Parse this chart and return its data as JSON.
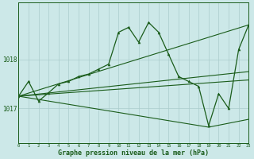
{
  "title": "Graphe pression niveau de la mer (hPa)",
  "background_color": "#cce8e8",
  "line_color": "#1a5c1a",
  "grid_color": "#aacccc",
  "yticks": [
    1017,
    1018
  ],
  "xtick_labels": [
    "0",
    "1",
    "2",
    "3",
    "4",
    "5",
    "6",
    "7",
    "8",
    "9",
    "10",
    "11",
    "12",
    "13",
    "14",
    "15",
    "16",
    "17",
    "18",
    "19",
    "20",
    "21",
    "22",
    "23"
  ],
  "xticks": [
    0,
    1,
    2,
    3,
    4,
    5,
    6,
    7,
    8,
    9,
    10,
    11,
    12,
    13,
    14,
    15,
    16,
    17,
    18,
    19,
    20,
    21,
    22,
    23
  ],
  "ylim": [
    1016.3,
    1019.15
  ],
  "xlim": [
    0,
    23
  ],
  "series_main": {
    "x": [
      0,
      1,
      2,
      3,
      4,
      5,
      6,
      7,
      8,
      9,
      10,
      11,
      12,
      13,
      14,
      15,
      16,
      17,
      18,
      19,
      20,
      21,
      22,
      23
    ],
    "y": [
      1017.25,
      1017.55,
      1017.15,
      1017.32,
      1017.5,
      1017.55,
      1017.65,
      1017.7,
      1017.8,
      1017.9,
      1018.55,
      1018.65,
      1018.35,
      1018.75,
      1018.55,
      1018.1,
      1017.65,
      1017.55,
      1017.45,
      1016.65,
      1017.3,
      1017.0,
      1018.2,
      1018.7
    ]
  },
  "fan_upper": {
    "x": [
      0,
      23
    ],
    "y": [
      1017.25,
      1018.7
    ]
  },
  "fan_mid_upper": {
    "x": [
      0,
      23
    ],
    "y": [
      1017.25,
      1017.75
    ]
  },
  "fan_mid_lower": {
    "x": [
      0,
      23
    ],
    "y": [
      1017.25,
      1017.58
    ]
  },
  "fan_lower": {
    "x": [
      0,
      19,
      23
    ],
    "y": [
      1017.25,
      1016.62,
      1016.78
    ]
  }
}
